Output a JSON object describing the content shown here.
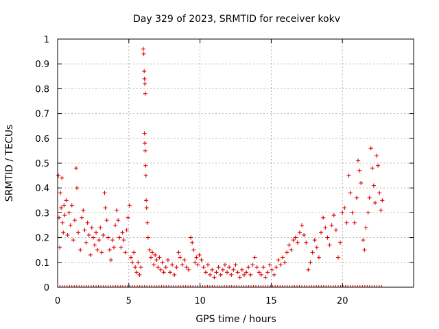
{
  "chart_data": {
    "type": "scatter",
    "title": "Day 329 of 2023, SRMTID for receiver kokv",
    "xlabel": "GPS time / hours",
    "ylabel": "SRMTID / TECUs",
    "xlim": [
      0,
      25
    ],
    "ylim": [
      0,
      1
    ],
    "x_ticks": [
      0,
      5,
      10,
      15,
      20
    ],
    "x_tick_labels": [
      "0",
      "5",
      "10",
      "15",
      "20"
    ],
    "y_ticks": [
      0,
      0.1,
      0.2,
      0.3,
      0.4,
      0.5,
      0.6,
      0.7,
      0.8,
      0.9,
      1
    ],
    "y_tick_labels": [
      "0",
      "0.1",
      "0.2",
      "0.3",
      "0.4",
      "0.5",
      "0.6",
      "0.7",
      "0.8",
      "0.9",
      "1"
    ],
    "grid": true,
    "marker": "+",
    "color": "#e00000",
    "series": [
      {
        "name": "SRMTID",
        "points": [
          [
            0.05,
            0.45
          ],
          [
            0.1,
            0.28
          ],
          [
            0.15,
            0.16
          ],
          [
            0.2,
            0.38
          ],
          [
            0.25,
            0.32
          ],
          [
            0.3,
            0.44
          ],
          [
            0.35,
            0.26
          ],
          [
            0.4,
            0.22
          ],
          [
            0.45,
            0.33
          ],
          [
            0.5,
            0.29
          ],
          [
            0.6,
            0.35
          ],
          [
            0.7,
            0.21
          ],
          [
            0.8,
            0.3
          ],
          [
            0.9,
            0.25
          ],
          [
            1.0,
            0.33
          ],
          [
            1.1,
            0.19
          ],
          [
            1.2,
            0.27
          ],
          [
            1.3,
            0.48
          ],
          [
            1.35,
            0.4
          ],
          [
            1.45,
            0.22
          ],
          [
            1.6,
            0.15
          ],
          [
            1.7,
            0.28
          ],
          [
            1.8,
            0.31
          ],
          [
            1.9,
            0.23
          ],
          [
            2.0,
            0.18
          ],
          [
            2.1,
            0.26
          ],
          [
            2.2,
            0.21
          ],
          [
            2.3,
            0.13
          ],
          [
            2.4,
            0.24
          ],
          [
            2.5,
            0.2
          ],
          [
            2.6,
            0.17
          ],
          [
            2.7,
            0.22
          ],
          [
            2.8,
            0.15
          ],
          [
            2.9,
            0.19
          ],
          [
            3.0,
            0.24
          ],
          [
            3.1,
            0.14
          ],
          [
            3.2,
            0.21
          ],
          [
            3.3,
            0.38
          ],
          [
            3.35,
            0.32
          ],
          [
            3.45,
            0.27
          ],
          [
            3.55,
            0.2
          ],
          [
            3.65,
            0.15
          ],
          [
            3.75,
            0.11
          ],
          [
            3.85,
            0.19
          ],
          [
            3.95,
            0.16
          ],
          [
            4.05,
            0.25
          ],
          [
            4.15,
            0.31
          ],
          [
            4.25,
            0.27
          ],
          [
            4.35,
            0.2
          ],
          [
            4.45,
            0.16
          ],
          [
            4.55,
            0.22
          ],
          [
            4.65,
            0.19
          ],
          [
            4.75,
            0.14
          ],
          [
            4.85,
            0.23
          ],
          [
            4.95,
            0.28
          ],
          [
            5.05,
            0.33
          ],
          [
            5.15,
            0.12
          ],
          [
            5.25,
            0.1
          ],
          [
            5.35,
            0.14
          ],
          [
            5.45,
            0.08
          ],
          [
            5.55,
            0.06
          ],
          [
            5.65,
            0.1
          ],
          [
            5.75,
            0.05
          ],
          [
            5.85,
            0.08
          ],
          [
            6.02,
            0.96
          ],
          [
            6.05,
            0.94
          ],
          [
            6.08,
            0.87
          ],
          [
            6.1,
            0.84
          ],
          [
            6.12,
            0.82
          ],
          [
            6.15,
            0.78
          ],
          [
            6.1,
            0.62
          ],
          [
            6.12,
            0.58
          ],
          [
            6.15,
            0.55
          ],
          [
            6.18,
            0.49
          ],
          [
            6.2,
            0.45
          ],
          [
            6.22,
            0.35
          ],
          [
            6.25,
            0.32
          ],
          [
            6.3,
            0.26
          ],
          [
            6.35,
            0.2
          ],
          [
            6.45,
            0.15
          ],
          [
            6.55,
            0.12
          ],
          [
            6.65,
            0.14
          ],
          [
            6.75,
            0.09
          ],
          [
            6.85,
            0.13
          ],
          [
            6.95,
            0.11
          ],
          [
            7.05,
            0.08
          ],
          [
            7.15,
            0.12
          ],
          [
            7.25,
            0.07
          ],
          [
            7.35,
            0.1
          ],
          [
            7.45,
            0.06
          ],
          [
            7.6,
            0.08
          ],
          [
            7.75,
            0.11
          ],
          [
            7.9,
            0.06
          ],
          [
            8.05,
            0.09
          ],
          [
            8.2,
            0.05
          ],
          [
            8.35,
            0.08
          ],
          [
            8.5,
            0.14
          ],
          [
            8.6,
            0.12
          ],
          [
            8.75,
            0.09
          ],
          [
            8.9,
            0.11
          ],
          [
            9.05,
            0.08
          ],
          [
            9.2,
            0.07
          ],
          [
            9.35,
            0.2
          ],
          [
            9.45,
            0.18
          ],
          [
            9.55,
            0.15
          ],
          [
            9.65,
            0.1
          ],
          [
            9.75,
            0.12
          ],
          [
            9.85,
            0.09
          ],
          [
            9.95,
            0.13
          ],
          [
            10.1,
            0.11
          ],
          [
            10.25,
            0.08
          ],
          [
            10.4,
            0.06
          ],
          [
            10.55,
            0.09
          ],
          [
            10.7,
            0.05
          ],
          [
            10.85,
            0.07
          ],
          [
            11.0,
            0.04
          ],
          [
            11.15,
            0.06
          ],
          [
            11.3,
            0.08
          ],
          [
            11.45,
            0.05
          ],
          [
            11.6,
            0.07
          ],
          [
            11.75,
            0.09
          ],
          [
            11.9,
            0.06
          ],
          [
            12.05,
            0.08
          ],
          [
            12.2,
            0.05
          ],
          [
            12.35,
            0.07
          ],
          [
            12.5,
            0.09
          ],
          [
            12.65,
            0.06
          ],
          [
            12.8,
            0.04
          ],
          [
            12.95,
            0.07
          ],
          [
            13.1,
            0.05
          ],
          [
            13.25,
            0.06
          ],
          [
            13.4,
            0.08
          ],
          [
            13.55,
            0.05
          ],
          [
            13.7,
            0.09
          ],
          [
            13.85,
            0.12
          ],
          [
            14.0,
            0.08
          ],
          [
            14.15,
            0.06
          ],
          [
            14.3,
            0.05
          ],
          [
            14.45,
            0.08
          ],
          [
            14.6,
            0.04
          ],
          [
            14.75,
            0.06
          ],
          [
            14.9,
            0.09
          ],
          [
            15.05,
            0.07
          ],
          [
            15.2,
            0.05
          ],
          [
            15.35,
            0.08
          ],
          [
            15.5,
            0.11
          ],
          [
            15.65,
            0.09
          ],
          [
            15.8,
            0.12
          ],
          [
            15.95,
            0.1
          ],
          [
            16.1,
            0.14
          ],
          [
            16.25,
            0.17
          ],
          [
            16.4,
            0.15
          ],
          [
            16.55,
            0.19
          ],
          [
            16.7,
            0.2
          ],
          [
            16.85,
            0.18
          ],
          [
            17.0,
            0.22
          ],
          [
            17.15,
            0.25
          ],
          [
            17.3,
            0.21
          ],
          [
            17.45,
            0.18
          ],
          [
            17.6,
            0.07
          ],
          [
            17.75,
            0.1
          ],
          [
            17.9,
            0.14
          ],
          [
            18.05,
            0.19
          ],
          [
            18.2,
            0.16
          ],
          [
            18.35,
            0.12
          ],
          [
            18.5,
            0.22
          ],
          [
            18.65,
            0.28
          ],
          [
            18.8,
            0.24
          ],
          [
            18.95,
            0.2
          ],
          [
            19.1,
            0.17
          ],
          [
            19.25,
            0.25
          ],
          [
            19.4,
            0.29
          ],
          [
            19.55,
            0.23
          ],
          [
            19.7,
            0.12
          ],
          [
            19.85,
            0.18
          ],
          [
            20.0,
            0.3
          ],
          [
            20.15,
            0.32
          ],
          [
            20.3,
            0.26
          ],
          [
            20.45,
            0.45
          ],
          [
            20.55,
            0.38
          ],
          [
            20.7,
            0.3
          ],
          [
            20.85,
            0.26
          ],
          [
            21.0,
            0.36
          ],
          [
            21.1,
            0.51
          ],
          [
            21.2,
            0.47
          ],
          [
            21.3,
            0.42
          ],
          [
            21.45,
            0.19
          ],
          [
            21.55,
            0.15
          ],
          [
            21.65,
            0.24
          ],
          [
            21.8,
            0.3
          ],
          [
            21.9,
            0.36
          ],
          [
            22.0,
            0.56
          ],
          [
            22.1,
            0.48
          ],
          [
            22.2,
            0.41
          ],
          [
            22.3,
            0.34
          ],
          [
            22.4,
            0.53
          ],
          [
            22.5,
            0.49
          ],
          [
            22.6,
            0.38
          ],
          [
            22.7,
            0.31
          ],
          [
            22.8,
            0.35
          ]
        ]
      }
    ],
    "zero_values_x_range": [
      0,
      22.8
    ]
  }
}
